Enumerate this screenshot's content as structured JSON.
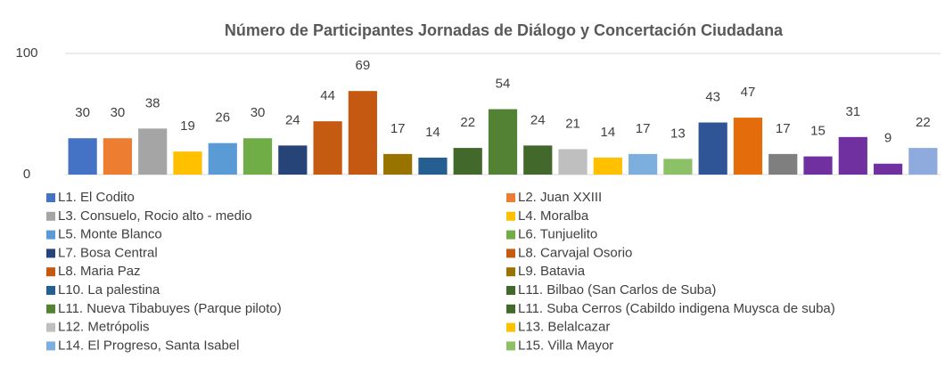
{
  "chart_data": {
    "type": "bar",
    "title": "Número de Participantes Jornadas de Diálogo y Concertación Ciudadana",
    "categories": [
      "L1. El Codito",
      "L2. Juan XXIII",
      "L3. Consuelo, Rocio alto - medio",
      "L4. Moralba",
      "L5. Monte Blanco",
      "L6. Tunjuelito",
      "L7. Bosa Central",
      "L8. Carvajal Osorio",
      "L8. Maria Paz",
      "L9. Batavia",
      "L10. La palestina",
      "L11. Bilbao (San Carlos de Suba)",
      "L11. Nueva Tibabuyes (Parque piloto)",
      "L11. Suba Cerros (Cabildo indigena Muysca de suba)",
      "L12. Metrópolis",
      "L13. Belalcazar",
      "L14. El Progreso, Santa Isabel",
      "L15. Villa Mayor",
      null,
      null,
      null,
      null,
      null,
      null,
      null
    ],
    "values": [
      30,
      30,
      38,
      19,
      26,
      30,
      24,
      44,
      69,
      17,
      14,
      22,
      54,
      24,
      21,
      14,
      17,
      13,
      43,
      47,
      17,
      15,
      31,
      9,
      22
    ],
    "colors": [
      "#4472c4",
      "#ed7d31",
      "#a5a5a5",
      "#ffc000",
      "#5b9bd5",
      "#70ad47",
      "#264478",
      "#c55a11",
      "#c65911",
      "#997300",
      "#255e91",
      "#43682b",
      "#548235",
      "#43682b",
      "#bfbfbf",
      "#ffc000",
      "#7cafdd",
      "#8cc168",
      "#2f5597",
      "#e46c0a",
      "#7f7f7f",
      "#7030a0",
      "#7030a0",
      "#7030a0",
      "#8faadc"
    ],
    "ylim": [
      0,
      100
    ],
    "yticks": [
      0,
      100
    ],
    "grid": true
  }
}
